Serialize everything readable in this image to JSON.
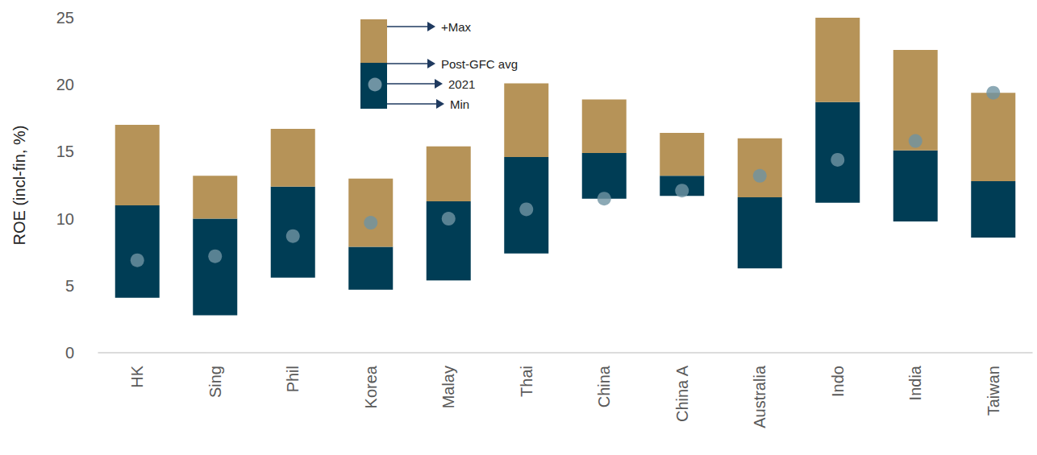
{
  "chart_data": {
    "type": "bar",
    "y_label": "ROE (incl-fin, %)",
    "categories": [
      "HK",
      "Sing",
      "Phil",
      "Korea",
      "Malay",
      "Thai",
      "China",
      "China A",
      "Australia",
      "Indo",
      "India",
      "Taiwan"
    ],
    "series": [
      {
        "name": "Min",
        "values": [
          4.1,
          2.8,
          5.6,
          4.7,
          5.4,
          7.4,
          11.5,
          11.7,
          6.3,
          11.2,
          9.8,
          8.6
        ]
      },
      {
        "name": "Post-GFC avg",
        "color": "#003d55",
        "values": [
          11.0,
          10.0,
          12.4,
          7.9,
          11.3,
          14.6,
          14.9,
          13.2,
          11.6,
          18.7,
          15.1,
          12.8
        ]
      },
      {
        "name": "+Max",
        "color": "#b69358",
        "values": [
          17.0,
          13.2,
          16.7,
          13.0,
          15.4,
          20.1,
          18.9,
          16.4,
          16.0,
          25.0,
          22.6,
          19.4
        ]
      },
      {
        "name": "2021",
        "type": "scatter",
        "marker": "circle",
        "color": "#6f93a3",
        "values": [
          6.9,
          7.2,
          8.7,
          9.7,
          10.0,
          10.7,
          11.5,
          12.1,
          13.2,
          14.4,
          15.8,
          19.4
        ]
      }
    ],
    "ylim": [
      0,
      25
    ],
    "yticks": [
      0,
      5,
      10,
      15,
      20,
      25
    ],
    "grid": false
  }
}
